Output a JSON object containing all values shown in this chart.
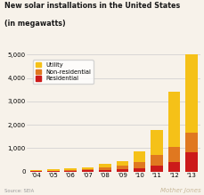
{
  "years": [
    "'04",
    "'05",
    "'06",
    "'07",
    "'08",
    "'09",
    "'10",
    "'11",
    "'12",
    "'13"
  ],
  "utility": [
    30,
    40,
    55,
    80,
    130,
    200,
    480,
    1050,
    2350,
    3450
  ],
  "non_residential": [
    20,
    25,
    40,
    60,
    110,
    150,
    250,
    480,
    650,
    850
  ],
  "residential": [
    15,
    20,
    30,
    50,
    80,
    100,
    150,
    250,
    420,
    820
  ],
  "utility_color": "#f5c118",
  "non_residential_color": "#e07820",
  "residential_color": "#cc1a1a",
  "title_line1": "New solar installations in the United States",
  "title_line2": "(in megawatts)",
  "ylim": [
    0,
    5000
  ],
  "yticks": [
    0,
    1000,
    2000,
    3000,
    4000,
    5000
  ],
  "source_text": "Source: SEIA",
  "watermark": "Mother Jones",
  "bg_color": "#f7f2ea",
  "legend_labels": [
    "Utility",
    "Non-residential",
    "Residential"
  ]
}
